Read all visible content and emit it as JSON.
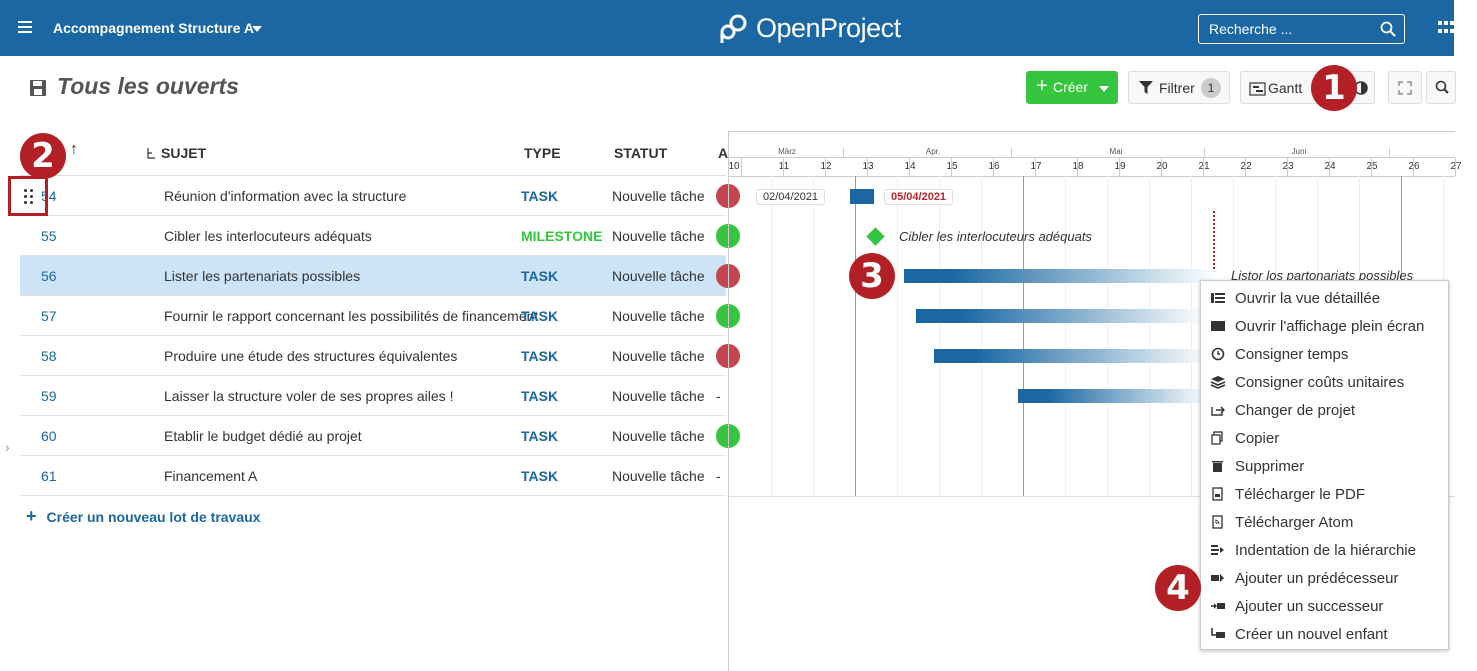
{
  "header": {
    "project_name": "Accompagnement Structure A",
    "logo_text": "OpenProject",
    "search_placeholder": "Recherche ..."
  },
  "toolbar": {
    "page_title": "Tous les ouverts",
    "create_label": "Créer",
    "filter_label": "Filtrer",
    "filter_count": "1",
    "gantt_label": "Gantt"
  },
  "callouts": [
    "1",
    "2",
    "3",
    "4"
  ],
  "table": {
    "headers": {
      "subject": "SUJET",
      "type": "TYPE",
      "status": "STATUT",
      "assignee": "A"
    },
    "rows": [
      {
        "id": "54",
        "subject": "Réunion d'information avec la structure",
        "type": "TASK",
        "status": "Nouvelle tâche",
        "avatar_color": "#c2454f"
      },
      {
        "id": "55",
        "subject": "Cibler les interlocuteurs adéquats",
        "type": "MILESTONE",
        "status": "Nouvelle tâche",
        "avatar_color": "#35c53f"
      },
      {
        "id": "56",
        "subject": "Lister les partenariats possibles",
        "type": "TASK",
        "status": "Nouvelle tâche",
        "avatar_color": "#c2454f"
      },
      {
        "id": "57",
        "subject": "Fournir le rapport concernant les possibilités de financement",
        "type": "TASK",
        "status": "Nouvelle tâche",
        "avatar_color": "#35c53f"
      },
      {
        "id": "58",
        "subject": "Produire une étude des structures équivalentes",
        "type": "TASK",
        "status": "Nouvelle tâche",
        "avatar_color": "#c2454f"
      },
      {
        "id": "59",
        "subject": "Laisser la structure voler de ses propres ailes !",
        "type": "TASK",
        "status": "Nouvelle tâche",
        "assignee_text": "-"
      },
      {
        "id": "60",
        "subject": "Etablir le budget dédié au projet",
        "type": "TASK",
        "status": "Nouvelle tâche",
        "avatar_color": "#35c53f"
      },
      {
        "id": "61",
        "subject": "Financement A",
        "type": "TASK",
        "status": "Nouvelle tâche",
        "assignee_text": "-"
      }
    ],
    "create_link": "Créer un nouveau lot de travaux"
  },
  "gantt": {
    "months": [
      "März",
      "Apr.",
      "Mai",
      "Juni"
    ],
    "days": [
      "10",
      "11",
      "12",
      "13",
      "14",
      "15",
      "16",
      "17",
      "18",
      "19",
      "20",
      "21",
      "22",
      "23",
      "24",
      "25",
      "26",
      "27"
    ],
    "start_date_chip": "02/04/2021",
    "end_date_chip": "05/04/2021",
    "milestone_label": "Cibler les interlocuteurs adéquats",
    "bar_label": "Listor los partonariats possibles"
  },
  "context_menu": {
    "items": [
      {
        "label": "Ouvrir la vue détaillée",
        "icon": "details-icon"
      },
      {
        "label": "Ouvrir l'affichage plein écran",
        "icon": "fullscreen-icon"
      },
      {
        "label": "Consigner temps",
        "icon": "clock-icon"
      },
      {
        "label": "Consigner coûts unitaires",
        "icon": "layers-icon"
      },
      {
        "label": "Changer de projet",
        "icon": "move-icon"
      },
      {
        "label": "Copier",
        "icon": "copy-icon"
      },
      {
        "label": "Supprimer",
        "icon": "trash-icon"
      },
      {
        "label": "Télécharger le PDF",
        "icon": "pdf-icon"
      },
      {
        "label": "Télécharger Atom",
        "icon": "atom-icon"
      },
      {
        "label": "Indentation de la hiérarchie",
        "icon": "indent-icon"
      },
      {
        "label": "Ajouter un prédécesseur",
        "icon": "predecessor-icon"
      },
      {
        "label": "Ajouter un successeur",
        "icon": "successor-icon"
      },
      {
        "label": "Créer un nouvel enfant",
        "icon": "child-icon"
      }
    ]
  }
}
